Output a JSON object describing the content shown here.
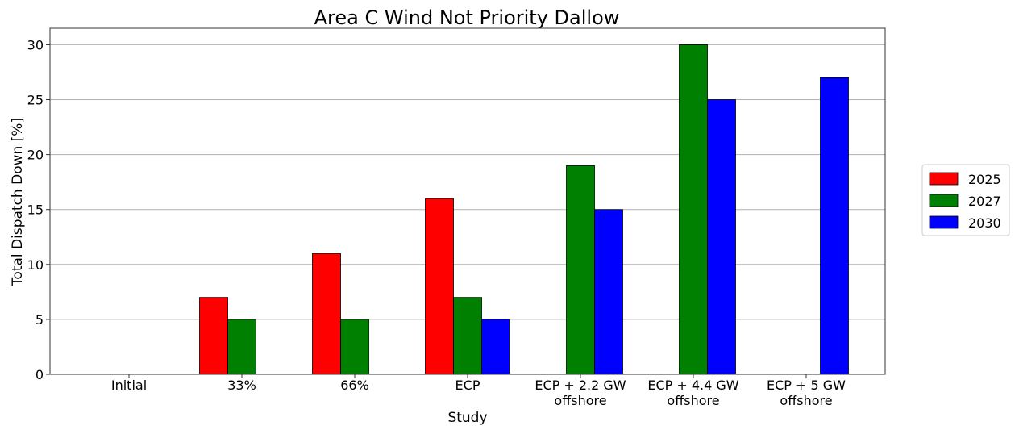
{
  "chart_data": {
    "type": "bar",
    "title": "Area C Wind Not Priority Dallow",
    "xlabel": "Study",
    "ylabel": "Total Dispatch Down [%]",
    "categories": [
      [
        "Initial"
      ],
      [
        "33%"
      ],
      [
        "66%"
      ],
      [
        "ECP"
      ],
      [
        "ECP + 2.2 GW",
        "offshore"
      ],
      [
        "ECP + 4.4 GW",
        "offshore"
      ],
      [
        "ECP + 5 GW",
        "offshore"
      ]
    ],
    "series": [
      {
        "name": "2025",
        "color": "#ff0000",
        "values": [
          null,
          7,
          11,
          16,
          null,
          null,
          null
        ]
      },
      {
        "name": "2027",
        "color": "#008000",
        "values": [
          null,
          5,
          5,
          7,
          19,
          30,
          null
        ]
      },
      {
        "name": "2030",
        "color": "#0000ff",
        "values": [
          null,
          null,
          null,
          5,
          15,
          25,
          27
        ]
      }
    ],
    "ylim": [
      0,
      31.5
    ],
    "yticks": [
      0,
      5,
      10,
      15,
      20,
      25,
      30
    ],
    "grid": true,
    "legend_position": "right"
  }
}
